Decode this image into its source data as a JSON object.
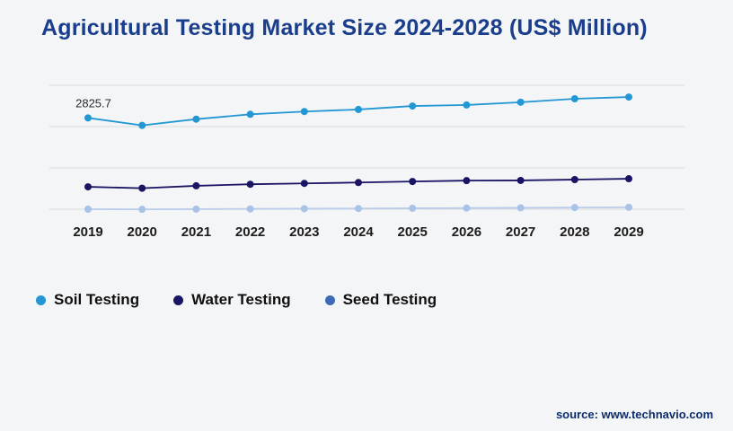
{
  "header": {
    "title": "Agricultural Testing Market Size 2024-2028 (US$ Million)"
  },
  "footer": {
    "source": "source: www.technavio.com"
  },
  "colors": {
    "background": "#f4f5f7",
    "title": "#1a3e8c",
    "source": "#0c2c6b",
    "gridline": "#d9dade",
    "axis_label": "#1c1c1c",
    "annotation": "#2b2b2b"
  },
  "chart_data": {
    "type": "line",
    "title": "Agricultural Testing Market Size 2024-2028 (US$ Million)",
    "categories": [
      "2019",
      "2020",
      "2021",
      "2022",
      "2023",
      "2024",
      "2025",
      "2026",
      "2027",
      "2028",
      "2029"
    ],
    "series": [
      {
        "name": "Soil Testing",
        "color": "#2397d3",
        "values": [
          2825.7,
          2610,
          2790,
          2930,
          3010,
          3070,
          3170,
          3200,
          3280,
          3380,
          3430
        ]
      },
      {
        "name": "Water Testing",
        "color": "#1a1464",
        "values": [
          830,
          790,
          860,
          905,
          930,
          955,
          985,
          1010,
          1015,
          1040,
          1065
        ]
      },
      {
        "name": "Seed Testing",
        "color": "#b9cce9",
        "marker_color": "#a9c3e6",
        "legend_color": "#3d6bb3",
        "values": [
          182,
          178,
          184,
          190,
          196,
          202,
          210,
          216,
          222,
          230,
          238
        ]
      }
    ],
    "annotations": [
      {
        "series": 0,
        "index": 0,
        "text": "2825.7"
      }
    ],
    "ylim": [
      0,
      3900
    ],
    "grid": true,
    "gridline_count": 4,
    "legend_position": "bottom-left",
    "xlabel": "",
    "ylabel": ""
  }
}
